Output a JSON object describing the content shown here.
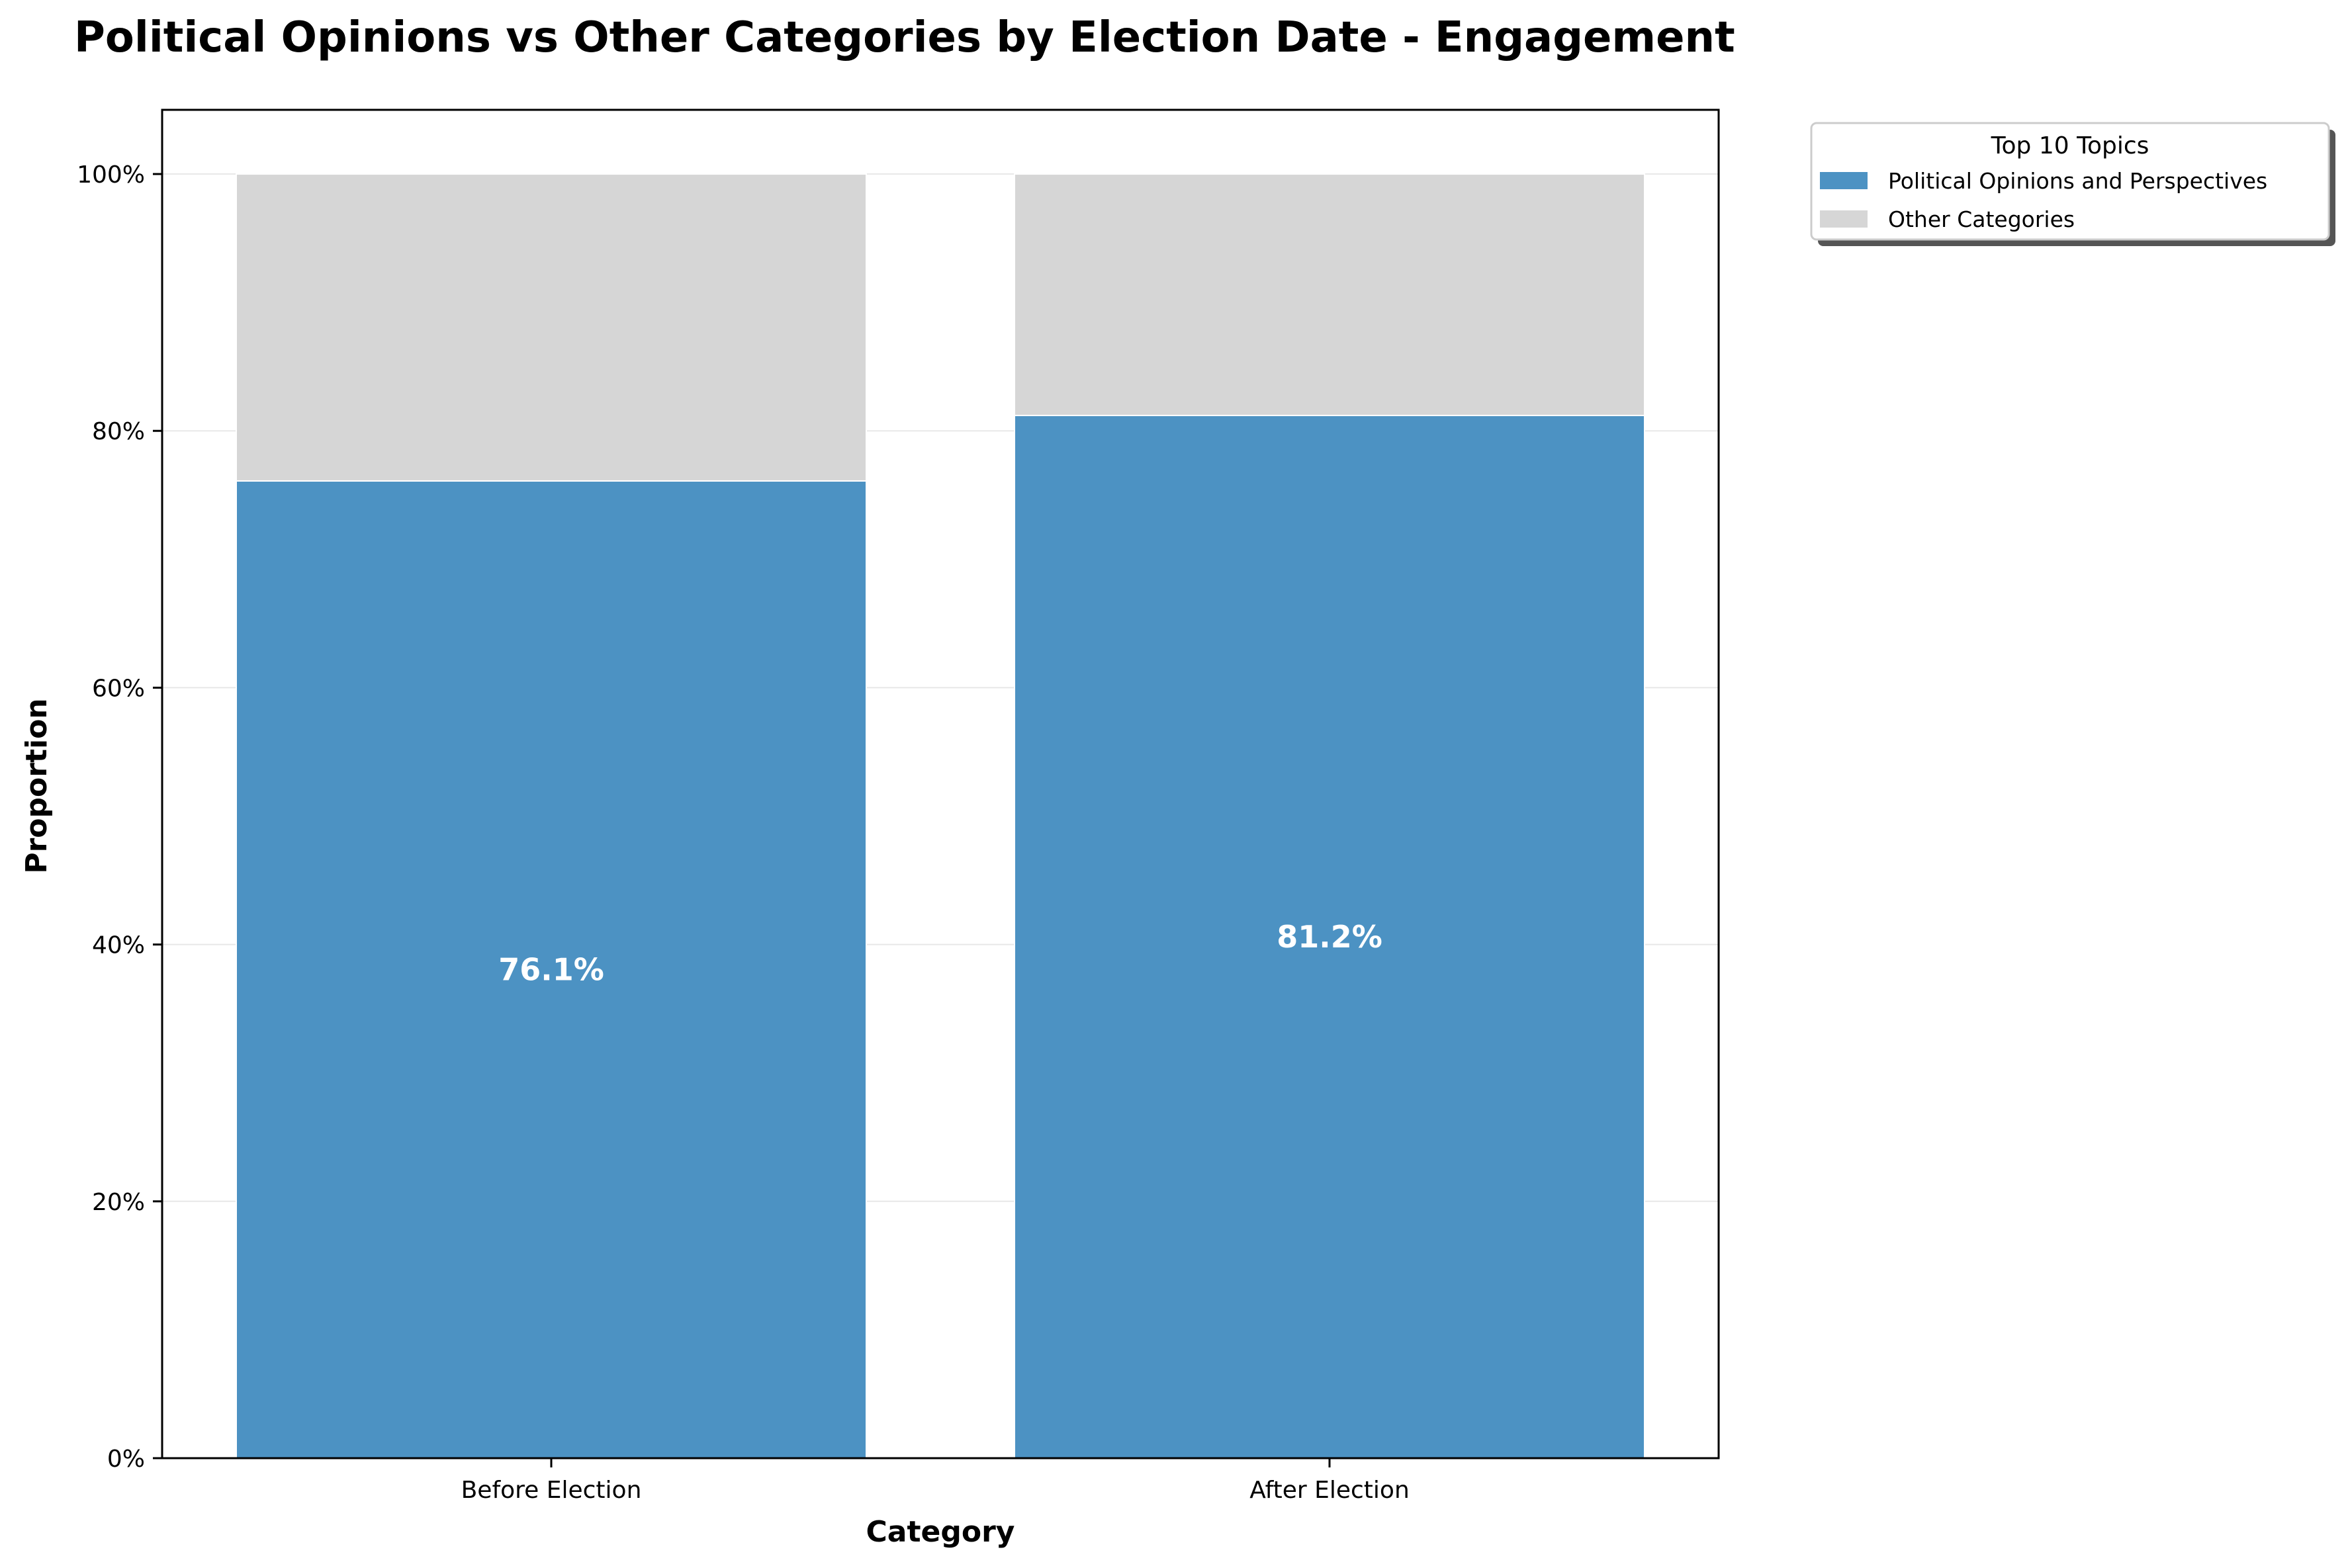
{
  "chart_data": {
    "type": "bar",
    "stacked": true,
    "normalized": true,
    "title": "Political Opinions vs Other Categories by Election Date - Engagement",
    "xlabel": "Category",
    "ylabel": "Proportion",
    "categories": [
      "Before Election",
      "After Election"
    ],
    "series": [
      {
        "name": "Political Opinions and Perspectives",
        "values": [
          0.761,
          0.812
        ],
        "color": "#4c92c3"
      },
      {
        "name": "Other Categories",
        "values": [
          0.239,
          0.188
        ],
        "color": "#d6d6d6"
      }
    ],
    "data_labels": [
      "76.1%",
      "81.2%"
    ],
    "ylim": [
      0,
      1.05
    ],
    "yticks": [
      0,
      0.2,
      0.4,
      0.6,
      0.8,
      1.0
    ],
    "ytick_labels": [
      "0%",
      "20%",
      "40%",
      "60%",
      "80%",
      "100%"
    ],
    "grid": "horizontal",
    "legend": {
      "title": "Top 10 Topics",
      "placement": "outside-top-right"
    }
  }
}
